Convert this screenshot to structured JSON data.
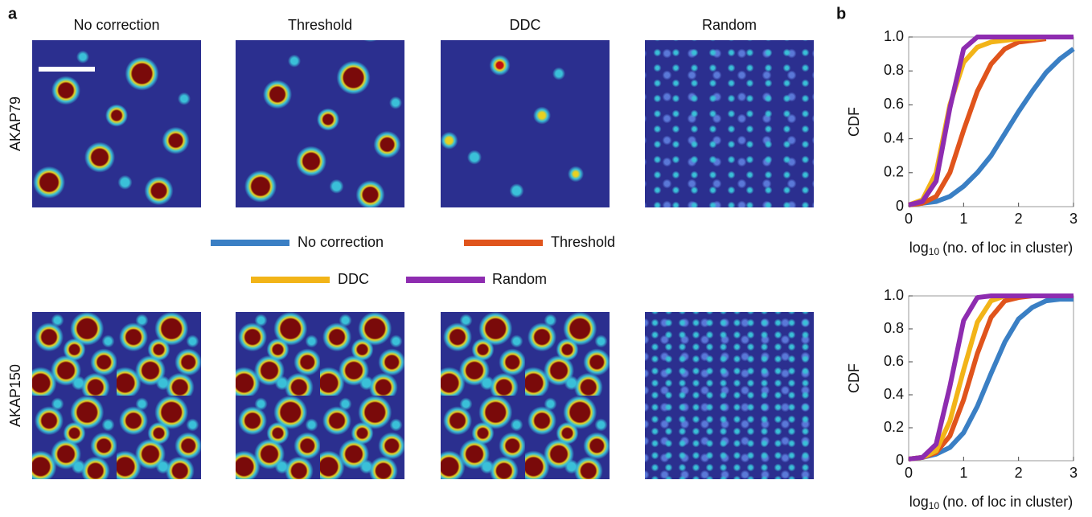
{
  "panel_labels": [
    "a",
    "b"
  ],
  "column_titles": [
    "No correction",
    "Threshold",
    "DDC",
    "Random"
  ],
  "row_labels": [
    "AKAP79",
    "AKAP150"
  ],
  "chart_data": [
    {
      "type": "line",
      "ylabel": "CDF",
      "xlabel": {
        "base": "log",
        "sub": "10",
        "rest": "(no. of loc in cluster)"
      },
      "x": [
        0,
        0.25,
        0.5,
        0.75,
        1,
        1.25,
        1.5,
        1.75,
        2,
        2.25,
        2.5,
        2.75,
        3
      ],
      "xlim": [
        0,
        3
      ],
      "ylim": [
        0,
        1
      ],
      "xticks": [
        0,
        1,
        2,
        3
      ],
      "yticks": [
        0,
        0.2,
        0.4,
        0.6,
        0.8,
        {
          "value": 1,
          "label": "1.0"
        }
      ],
      "series": [
        {
          "name": "No correction",
          "color": "#3a7fc4",
          "values": [
            0.01,
            0.02,
            0.03,
            0.06,
            0.12,
            0.2,
            0.3,
            0.43,
            0.56,
            0.68,
            0.79,
            0.87,
            0.93
          ]
        },
        {
          "name": "Threshold",
          "color": "#e0541c",
          "values": [
            0.01,
            0.02,
            0.06,
            0.2,
            0.45,
            0.68,
            0.84,
            0.93,
            0.97,
            0.98,
            0.99,
            null,
            null
          ]
        },
        {
          "name": "DDC",
          "color": "#f2b418",
          "values": [
            0.01,
            0.04,
            0.2,
            0.6,
            0.85,
            0.94,
            0.97,
            0.98,
            0.99,
            0.99,
            1,
            null,
            null
          ]
        },
        {
          "name": "Random",
          "color": "#8e2cb0",
          "values": [
            0.01,
            0.03,
            0.15,
            0.58,
            0.93,
            1,
            1,
            1,
            1,
            1,
            1,
            1,
            1
          ]
        }
      ]
    },
    {
      "type": "line",
      "ylabel": "CDF",
      "xlabel": {
        "base": "log",
        "sub": "10",
        "rest": "(no. of loc in cluster)"
      },
      "x": [
        0,
        0.25,
        0.5,
        0.75,
        1,
        1.25,
        1.5,
        1.75,
        2,
        2.25,
        2.5,
        2.75,
        3
      ],
      "xlim": [
        0,
        3
      ],
      "ylim": [
        0,
        1
      ],
      "xticks": [
        0,
        1,
        2,
        3
      ],
      "yticks": [
        0,
        0.2,
        0.4,
        0.6,
        0.8,
        {
          "value": 1,
          "label": "1.0"
        }
      ],
      "series": [
        {
          "name": "No correction",
          "color": "#3a7fc4",
          "values": [
            0.01,
            0.02,
            0.04,
            0.08,
            0.17,
            0.33,
            0.53,
            0.72,
            0.86,
            0.93,
            0.97,
            0.98,
            0.98
          ]
        },
        {
          "name": "Threshold",
          "color": "#e0541c",
          "values": [
            0.01,
            0.02,
            0.05,
            0.15,
            0.37,
            0.65,
            0.87,
            0.97,
            0.99,
            1,
            1,
            1,
            1
          ]
        },
        {
          "name": "DDC",
          "color": "#f2b418",
          "values": [
            0.01,
            0.02,
            0.06,
            0.24,
            0.55,
            0.84,
            0.97,
            1,
            1,
            1,
            1,
            1,
            1
          ]
        },
        {
          "name": "Random",
          "color": "#8e2cb0",
          "values": [
            0.01,
            0.02,
            0.1,
            0.45,
            0.85,
            0.99,
            1,
            1,
            1,
            1,
            1,
            1,
            1
          ]
        }
      ]
    }
  ]
}
